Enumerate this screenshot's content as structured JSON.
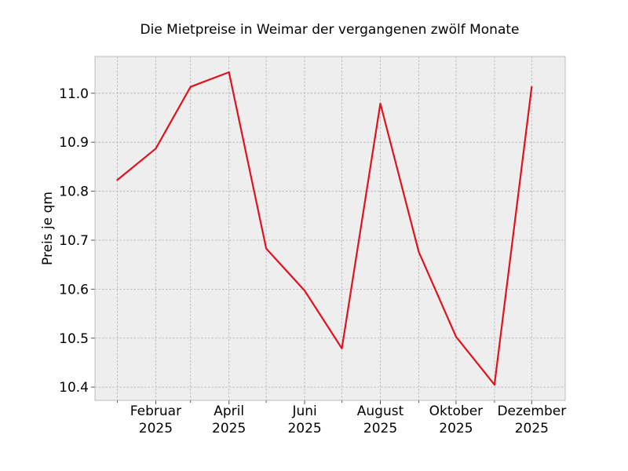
{
  "chart_data": {
    "type": "line",
    "title": "Die Mietpreise in Weimar der vergangenen zwölf Monate",
    "xlabel": "",
    "ylabel": "Preis je qm",
    "x": [
      "2025-01",
      "2025-02",
      "2025-03",
      "2025-04",
      "2025-05",
      "2025-06",
      "2025-07",
      "2025-08",
      "2025-09",
      "2025-10",
      "2025-11",
      "2025-12"
    ],
    "series": [
      {
        "color": "#e0121e",
        "values": [
          10.823,
          10.887,
          11.013,
          11.043,
          10.683,
          10.597,
          10.479,
          10.979,
          10.676,
          10.503,
          10.405,
          11.013
        ]
      }
    ],
    "x_major_ticks": [
      {
        "x": "2025-02",
        "month": "Februar",
        "year": "2025"
      },
      {
        "x": "2025-04",
        "month": "April",
        "year": "2025"
      },
      {
        "x": "2025-06",
        "month": "Juni",
        "year": "2025"
      },
      {
        "x": "2025-08",
        "month": "August",
        "year": "2025"
      },
      {
        "x": "2025-10",
        "month": "Oktober",
        "year": "2025"
      },
      {
        "x": "2025-12",
        "month": "Dezember",
        "year": "2025"
      }
    ],
    "x_minor_ticks": [
      "2025-01",
      "2025-03",
      "2025-05",
      "2025-07",
      "2025-09",
      "2025-11"
    ],
    "y_ticks": [
      "10.4",
      "10.5",
      "10.6",
      "10.7",
      "10.8",
      "10.9",
      "11.0"
    ],
    "ylim": [
      10.373,
      11.075
    ],
    "xlim": [
      "2024-12-14",
      "2025-12-28"
    ],
    "grid": true,
    "legend": "none",
    "background_color": "#eeeeee",
    "grid_color": "#b0b0b0",
    "frame_color": "#bcbcbc"
  }
}
